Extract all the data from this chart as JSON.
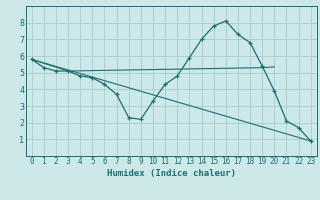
{
  "xlabel": "Humidex (Indice chaleur)",
  "xlim": [
    -0.5,
    23.5
  ],
  "ylim": [
    0,
    9
  ],
  "xticks": [
    0,
    1,
    2,
    3,
    4,
    5,
    6,
    7,
    8,
    9,
    10,
    11,
    12,
    13,
    14,
    15,
    16,
    17,
    18,
    19,
    20,
    21,
    22,
    23
  ],
  "yticks": [
    1,
    2,
    3,
    4,
    5,
    6,
    7,
    8
  ],
  "background_color": "#cce8e8",
  "grid_color": "#aacccc",
  "line_color": "#1a7070",
  "lines": [
    {
      "x": [
        0,
        1,
        2,
        3,
        4,
        5,
        6,
        7,
        8,
        9,
        10,
        11,
        12,
        13,
        14,
        15,
        16,
        17,
        18,
        19,
        20,
        21,
        22,
        23
      ],
      "y": [
        5.8,
        5.3,
        5.1,
        5.1,
        4.8,
        4.7,
        4.3,
        3.7,
        2.3,
        2.2,
        3.3,
        4.3,
        4.8,
        5.9,
        7.0,
        7.8,
        8.1,
        7.3,
        6.8,
        5.4,
        3.9,
        2.1,
        1.7,
        0.9
      ],
      "marker": true
    },
    {
      "x": [
        0,
        3,
        19,
        20
      ],
      "y": [
        5.8,
        5.1,
        5.3,
        5.35
      ],
      "marker": false
    },
    {
      "x": [
        0,
        23
      ],
      "y": [
        5.8,
        0.9
      ],
      "marker": false
    }
  ]
}
